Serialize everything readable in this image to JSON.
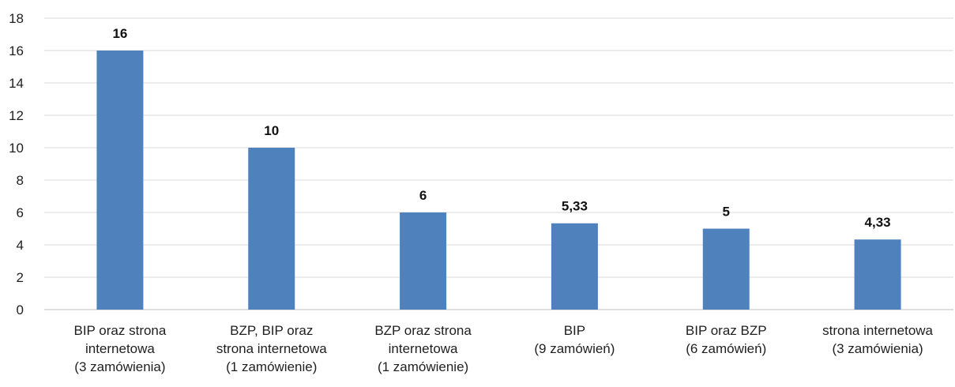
{
  "chart_data": {
    "type": "bar",
    "categories": [
      [
        "BIP oraz strona",
        "internetowa",
        "(3 zamówienia)"
      ],
      [
        "BZP, BIP oraz",
        "strona internetowa",
        "(1 zamówienie)"
      ],
      [
        "BZP oraz strona",
        "internetowa",
        "(1 zamówienie)"
      ],
      [
        "BIP",
        "(9 zamówień)"
      ],
      [
        "BIP oraz BZP",
        "(6 zamówień)"
      ],
      [
        "strona internetowa",
        "(3 zamówienia)"
      ]
    ],
    "values": [
      16,
      10,
      6,
      5.33,
      5,
      4.33
    ],
    "data_labels": [
      "16",
      "10",
      "6",
      "5,33",
      "5",
      "4,33"
    ],
    "y_ticks": [
      "0",
      "2",
      "4",
      "6",
      "8",
      "10",
      "12",
      "14",
      "16",
      "18"
    ],
    "ylim": [
      0,
      18
    ],
    "grid": true,
    "legend": "none",
    "bar_color": "#4f81bd",
    "title": "",
    "xlabel": "",
    "ylabel": ""
  }
}
